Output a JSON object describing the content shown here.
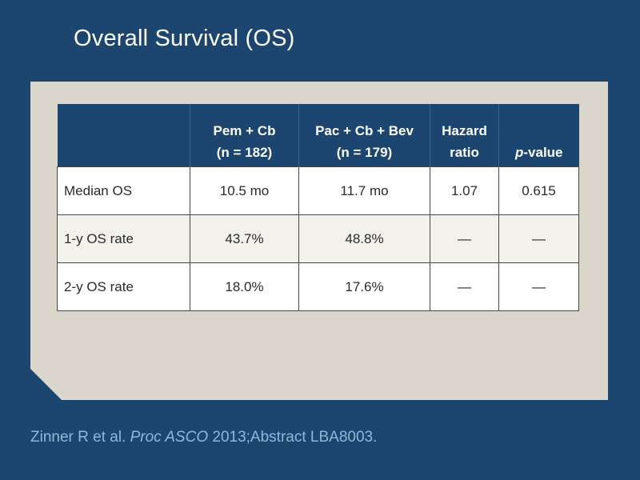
{
  "slide": {
    "title": "Overall Survival (OS)"
  },
  "table": {
    "headers": [
      {
        "line1": "",
        "line2": ""
      },
      {
        "line1": "Pem + Cb",
        "line2": "(n = 182)"
      },
      {
        "line1": "Pac + Cb + Bev",
        "line2": "(n = 179)"
      },
      {
        "line1": "Hazard",
        "line2": "ratio"
      },
      {
        "line1": "",
        "line2_italic": "p",
        "line2": "-value"
      }
    ],
    "rows": [
      {
        "label": "Median OS",
        "cells": [
          "10.5 mo",
          "11.7 mo",
          "1.07",
          "0.615"
        ]
      },
      {
        "label": "1-y OS rate",
        "cells": [
          "43.7%",
          "48.8%",
          "—",
          "—"
        ]
      },
      {
        "label": "2-y OS rate",
        "cells": [
          "18.0%",
          "17.6%",
          "—",
          "—"
        ]
      }
    ]
  },
  "citation": {
    "authors": "Zinner R et al. ",
    "journal": "Proc ASCO",
    "details": " 2013;Abstract LBA8003."
  },
  "colors": {
    "background": "#1c4570",
    "panel": "#dbd6cb",
    "header_fill": "#1c4570",
    "shaded_row": "#f3f1ec",
    "citation_text": "#8fb8d8"
  }
}
